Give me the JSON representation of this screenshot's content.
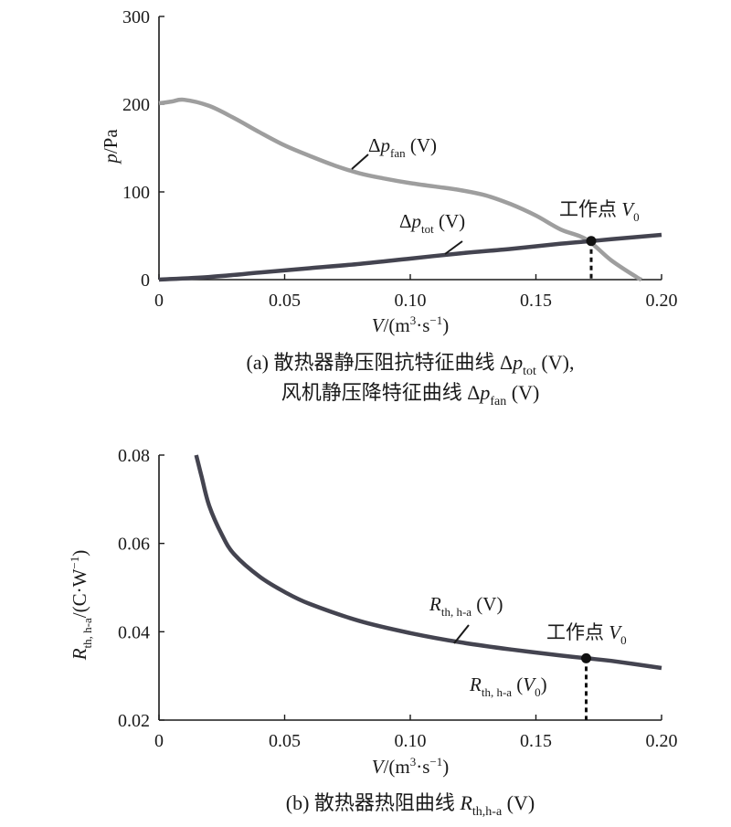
{
  "colors": {
    "fan_curve": "#9e9e9e",
    "tot_curve": "#444450",
    "rth_curve": "#444450",
    "axis": "#1a1a1a"
  },
  "chart_data": [
    {
      "type": "line",
      "xlim": [
        0,
        0.2
      ],
      "ylim": [
        0,
        300
      ],
      "x_ticks": [
        "0",
        "0.05",
        "0.10",
        "0.15",
        "0.20"
      ],
      "y_ticks": [
        "0",
        "100",
        "200",
        "300"
      ],
      "ylabel": {
        "var": "p",
        "unit": "/Pa"
      },
      "xlabel": {
        "var": "V",
        "unit": "/(m",
        "sup": "3",
        "mid": "·s",
        "sup2": "−1",
        "end": ")"
      },
      "series": [
        {
          "name": "Δp_fan (V)",
          "x": [
            0,
            0.005,
            0.01,
            0.02,
            0.03,
            0.04,
            0.05,
            0.06,
            0.07,
            0.08,
            0.09,
            0.1,
            0.11,
            0.12,
            0.13,
            0.14,
            0.15,
            0.16,
            0.17,
            0.18,
            0.19,
            0.192
          ],
          "y": [
            201,
            203,
            205,
            198,
            184,
            168,
            153,
            141,
            130,
            121,
            115,
            110,
            106,
            102,
            96,
            86,
            73,
            57,
            46,
            22,
            3,
            0
          ]
        },
        {
          "name": "Δp_tot (V)",
          "x": [
            0,
            0.02,
            0.04,
            0.06,
            0.08,
            0.1,
            0.12,
            0.14,
            0.16,
            0.172,
            0.18,
            0.2
          ],
          "y": [
            0,
            3,
            8,
            13,
            18,
            24,
            30,
            35,
            41,
            44,
            46,
            51
          ]
        }
      ],
      "operating_point": {
        "x": 0.172,
        "y": 44
      },
      "annotations": {
        "fan": {
          "pre": "Δ",
          "var": "p",
          "sub": "fan",
          "post": " (V)"
        },
        "tot": {
          "pre": "Δ",
          "var": "p",
          "sub": "tot",
          "post": " (V)"
        },
        "op": {
          "text": "工作点 ",
          "var": "V",
          "sub": "0"
        }
      },
      "caption": {
        "line1": "(a) 散热器静压阻抗特征曲线 Δ",
        "line1_var": "p",
        "line1_sub": "tot",
        "line1_end": " (V),",
        "line2": "风机静压降特征曲线 Δ",
        "line2_var": "p",
        "line2_sub": "fan",
        "line2_end": " (V)"
      }
    },
    {
      "type": "line",
      "xlim": [
        0,
        0.2
      ],
      "ylim": [
        0.02,
        0.08
      ],
      "x_ticks": [
        "0",
        "0.05",
        "0.10",
        "0.15",
        "0.20"
      ],
      "y_ticks": [
        "0.02",
        "0.04",
        "0.06",
        "0.08"
      ],
      "ylabel": {
        "var": "R",
        "sub": "th, h-a",
        "unit": "/(C·W",
        "sup": "−1",
        "end": ")"
      },
      "xlabel": {
        "var": "V",
        "unit": "/(m",
        "sup": "3",
        "mid": "·s",
        "sup2": "−1",
        "end": ")"
      },
      "series": [
        {
          "name": "R_th, h-a (V)",
          "x": [
            0.0148,
            0.017,
            0.02,
            0.025,
            0.03,
            0.04,
            0.05,
            0.06,
            0.08,
            0.1,
            0.12,
            0.14,
            0.16,
            0.17,
            0.18,
            0.2
          ],
          "y": [
            0.08,
            0.075,
            0.0685,
            0.062,
            0.0575,
            0.0525,
            0.049,
            0.0463,
            0.0424,
            0.0397,
            0.0376,
            0.036,
            0.0346,
            0.034,
            0.0334,
            0.0318
          ]
        }
      ],
      "operating_point": {
        "x": 0.17,
        "y": 0.034
      },
      "annotations": {
        "curve": {
          "var": "R",
          "sub": "th, h-a",
          "post": " (V)"
        },
        "op": {
          "text": "工作点 ",
          "var": "V",
          "sub": "0"
        },
        "value": {
          "var": "R",
          "sub": "th, h-a",
          "post": " (",
          "var2": "V",
          "sub2": "0",
          "end": ")"
        }
      },
      "caption": {
        "text": "(b) 散热器热阻曲线 ",
        "var": "R",
        "sub": "th,h-a",
        "end": " (V)"
      }
    }
  ]
}
